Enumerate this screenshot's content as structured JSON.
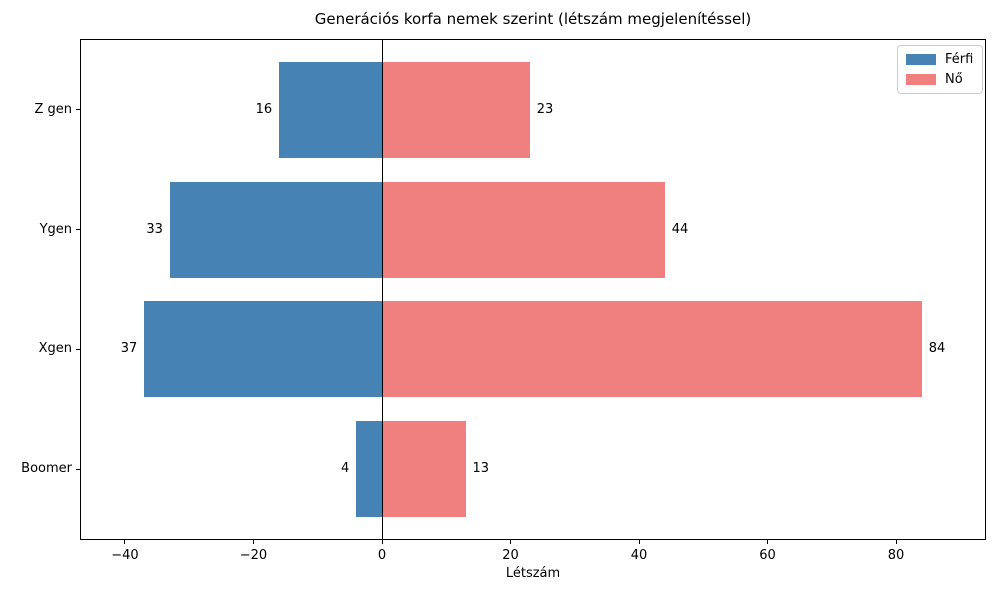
{
  "figure": {
    "title": "Generációs korfa nemek szerint (létszám megjelenítéssel)",
    "xlabel": "Létszám"
  },
  "chart_data": {
    "type": "bar",
    "orientation": "horizontal",
    "title": "Generációs korfa nemek szerint (létszám megjelenítéssel)",
    "xlabel": "Létszám",
    "ylabel": "",
    "categories": [
      "Z gen",
      "Ygen",
      "Xgen",
      "Boomer"
    ],
    "series": [
      {
        "name": "Férfi",
        "color": "#4682B4",
        "side": "left",
        "values": [
          16,
          33,
          37,
          4
        ]
      },
      {
        "name": "Nő",
        "color": "#F08080",
        "side": "right",
        "values": [
          23,
          44,
          84,
          13
        ]
      }
    ],
    "bar_value_labels": true,
    "xlim": [
      -47,
      94
    ],
    "xticks": [
      -40,
      -20,
      0,
      20,
      40,
      60,
      80
    ],
    "xtick_labels": [
      "−40",
      "−20",
      "0",
      "20",
      "40",
      "60",
      "80"
    ],
    "zero_line": true,
    "grid": false,
    "legend_position": "upper right"
  }
}
